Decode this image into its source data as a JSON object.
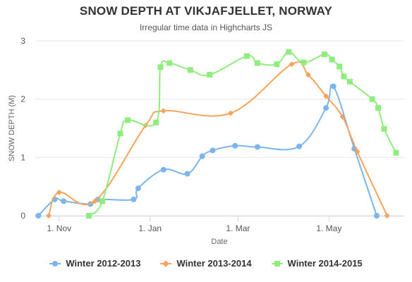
{
  "title": "SNOW DEPTH AT VIKJAFJELLET, NORWAY",
  "subtitle": "Irregular time data in Highcharts JS",
  "chart_data": {
    "type": "line",
    "title": "SNOW DEPTH AT VIKJAFJELLET, NORWAY",
    "subtitle": "Irregular time data in Highcharts JS",
    "xlabel": "Date",
    "ylabel": "SNOW DEPTH (M)",
    "x_range": [
      "1970-10-16",
      "1971-06-20"
    ],
    "ylim": [
      0,
      3
    ],
    "yticks": [
      0,
      1,
      2,
      3
    ],
    "xticks": [
      {
        "date": "1970-11-01",
        "label": "1. Nov"
      },
      {
        "date": "1971-01-01",
        "label": "1. Jan"
      },
      {
        "date": "1971-03-01",
        "label": "1. Mar"
      },
      {
        "date": "1971-05-01",
        "label": "1. May"
      }
    ],
    "grid": "horizontal",
    "legend_position": "bottom",
    "series": [
      {
        "name": "Winter 2012-2013",
        "color": "#7cb5ec",
        "marker": "circle",
        "points": [
          {
            "x": "1970-10-18",
            "y": 0
          },
          {
            "x": "1970-10-29",
            "y": 0.28
          },
          {
            "x": "1970-11-04",
            "y": 0.25
          },
          {
            "x": "1970-11-22",
            "y": 0.2
          },
          {
            "x": "1970-11-27",
            "y": 0.28
          },
          {
            "x": "1970-12-21",
            "y": 0.28
          },
          {
            "x": "1970-12-24",
            "y": 0.47
          },
          {
            "x": "1971-01-10",
            "y": 0.79
          },
          {
            "x": "1971-01-26",
            "y": 0.72
          },
          {
            "x": "1971-02-05",
            "y": 1.02
          },
          {
            "x": "1971-02-12",
            "y": 1.12
          },
          {
            "x": "1971-02-27",
            "y": 1.2
          },
          {
            "x": "1971-03-14",
            "y": 1.18
          },
          {
            "x": "1971-04-11",
            "y": 1.19
          },
          {
            "x": "1971-04-29",
            "y": 1.85
          },
          {
            "x": "1971-05-04",
            "y": 2.22
          },
          {
            "x": "1971-05-18",
            "y": 1.15
          },
          {
            "x": "1971-06-02",
            "y": 0
          }
        ]
      },
      {
        "name": "Winter 2013-2014",
        "color": "#f7a35c",
        "marker": "diamond",
        "points": [
          {
            "x": "1970-10-25",
            "y": 0
          },
          {
            "x": "1970-11-01",
            "y": 0.4
          },
          {
            "x": "1970-11-25",
            "y": 0.25
          },
          {
            "x": "1970-12-29",
            "y": 1.55
          },
          {
            "x": "1971-01-10",
            "y": 1.8
          },
          {
            "x": "1971-02-24",
            "y": 1.76
          },
          {
            "x": "1971-04-06",
            "y": 2.6
          },
          {
            "x": "1971-04-17",
            "y": 2.42
          },
          {
            "x": "1971-04-29",
            "y": 2.05
          },
          {
            "x": "1971-05-10",
            "y": 1.7
          },
          {
            "x": "1971-05-20",
            "y": 1.1
          },
          {
            "x": "1971-06-09",
            "y": 0
          }
        ]
      },
      {
        "name": "Winter 2014-2015",
        "color": "#90ed7d",
        "marker": "square",
        "points": [
          {
            "x": "1970-11-21",
            "y": 0
          },
          {
            "x": "1970-11-30",
            "y": 0.25
          },
          {
            "x": "1970-12-12",
            "y": 1.41
          },
          {
            "x": "1970-12-17",
            "y": 1.64
          },
          {
            "x": "1971-01-05",
            "y": 1.6
          },
          {
            "x": "1971-01-08",
            "y": 2.55
          },
          {
            "x": "1971-01-14",
            "y": 2.62
          },
          {
            "x": "1971-01-28",
            "y": 2.5
          },
          {
            "x": "1971-02-10",
            "y": 2.42
          },
          {
            "x": "1971-03-07",
            "y": 2.74
          },
          {
            "x": "1971-03-14",
            "y": 2.62
          },
          {
            "x": "1971-03-27",
            "y": 2.6
          },
          {
            "x": "1971-04-04",
            "y": 2.81
          },
          {
            "x": "1971-04-14",
            "y": 2.63
          },
          {
            "x": "1971-04-28",
            "y": 2.77
          },
          {
            "x": "1971-05-03",
            "y": 2.68
          },
          {
            "x": "1971-05-08",
            "y": 2.56
          },
          {
            "x": "1971-05-11",
            "y": 2.39
          },
          {
            "x": "1971-05-15",
            "y": 2.3
          },
          {
            "x": "1971-05-30",
            "y": 2.0
          },
          {
            "x": "1971-06-03",
            "y": 1.85
          },
          {
            "x": "1971-06-07",
            "y": 1.49
          },
          {
            "x": "1971-06-15",
            "y": 1.08
          }
        ]
      }
    ]
  }
}
